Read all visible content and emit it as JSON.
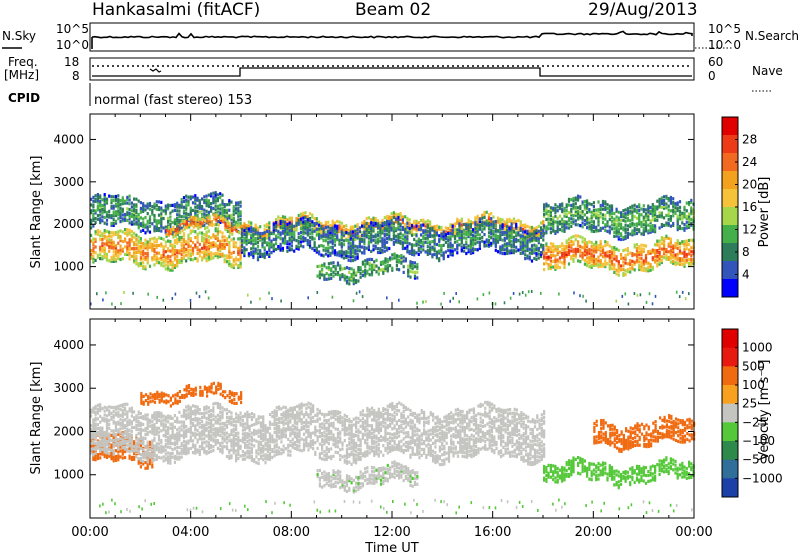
{
  "header": {
    "station": "Hankasalmi (fitACF)",
    "beam": "Beam 02",
    "date": "29/Aug/2013"
  },
  "strip": {
    "nsky_label": "N.Sky",
    "nsearch_label": "N.Search",
    "noise_ticks": [
      "10^5",
      "10^0"
    ],
    "freq_label": [
      "Freq.",
      "[MHz]"
    ],
    "freq_ticks": [
      "18",
      "8"
    ],
    "nave_label": "Nave",
    "nave_ticks": [
      "60",
      "0"
    ],
    "cpid_label": "CPID",
    "cpid_text": "normal (fast stereo) 153"
  },
  "axes": {
    "ylabel": "Slant Range [km]",
    "xlabel": "Time UT",
    "yticks": [
      "1000",
      "2000",
      "3000",
      "4000"
    ],
    "xticks": [
      "00:00",
      "04:00",
      "08:00",
      "12:00",
      "16:00",
      "20:00",
      "00:00"
    ]
  },
  "colorbars": {
    "power": {
      "label": "Power [dB]",
      "ticks": [
        "4",
        "8",
        "12",
        "16",
        "20",
        "24",
        "28"
      ],
      "colors": [
        "#0000ff",
        "#3355bb",
        "#2e7d5a",
        "#45b04a",
        "#a6d64a",
        "#f6c23a",
        "#f3a21f",
        "#f26a1f",
        "#ee3b17",
        "#e00000"
      ]
    },
    "velocity": {
      "label": "Velocity [m s⁻¹]",
      "ticks": [
        "1000",
        "500",
        "100",
        "25",
        "−25",
        "−100",
        "−500",
        "−1000"
      ],
      "colors": [
        "#1d3fa8",
        "#2f6f9a",
        "#2e8a4a",
        "#55c83a",
        "#c4c4c0",
        "#f8a020",
        "#f06a10",
        "#e81a10",
        "#e00000"
      ]
    }
  },
  "chart_data": [
    {
      "type": "heatmap",
      "title": "Power",
      "xlabel": "Time UT",
      "ylabel": "Slant Range [km]",
      "xlim": [
        0,
        24
      ],
      "ylim": [
        0,
        4600
      ],
      "colorbar_range_db": [
        0,
        32
      ],
      "echo_bands": [
        {
          "t0": 0.0,
          "t1": 6.0,
          "r_center": 1450,
          "width": 700,
          "level_db": 24
        },
        {
          "t0": 0.0,
          "t1": 6.0,
          "r_center": 2300,
          "width": 700,
          "level_db": 10
        },
        {
          "t0": 3.0,
          "t1": 6.0,
          "r_center": 2000,
          "width": 250,
          "level_db": 26
        },
        {
          "t0": 6.0,
          "t1": 18.0,
          "r_center": 2000,
          "width": 350,
          "level_db": 24
        },
        {
          "t0": 6.0,
          "t1": 18.0,
          "r_center": 1700,
          "width": 700,
          "level_db": 9
        },
        {
          "t0": 9.0,
          "t1": 13.0,
          "r_center": 1000,
          "width": 400,
          "level_db": 12
        },
        {
          "t0": 18.0,
          "t1": 24.0,
          "r_center": 1300,
          "width": 600,
          "level_db": 26
        },
        {
          "t0": 18.0,
          "t1": 24.0,
          "r_center": 2200,
          "width": 700,
          "level_db": 12
        }
      ]
    },
    {
      "type": "heatmap",
      "title": "Velocity",
      "xlabel": "Time UT",
      "ylabel": "Slant Range [km]",
      "xlim": [
        0,
        24
      ],
      "ylim": [
        0,
        4600
      ],
      "colorbar_range_ms": [
        -1000,
        1000
      ],
      "echo_bands": [
        {
          "t0": 0.0,
          "t1": 2.5,
          "r_center": 1600,
          "width": 600,
          "velocity_ms": -200
        },
        {
          "t0": 2.0,
          "t1": 6.0,
          "r_center": 2900,
          "width": 250,
          "velocity_ms": -300
        },
        {
          "t0": 0.0,
          "t1": 18.0,
          "r_center": 2000,
          "width": 1100,
          "velocity_ms": 0
        },
        {
          "t0": 9.0,
          "t1": 13.0,
          "r_center": 1000,
          "width": 400,
          "velocity_ms": 10
        },
        {
          "t0": 18.0,
          "t1": 24.0,
          "r_center": 1100,
          "width": 400,
          "velocity_ms": 60
        },
        {
          "t0": 20.0,
          "t1": 24.0,
          "r_center": 2000,
          "width": 500,
          "velocity_ms": -200
        }
      ]
    }
  ]
}
